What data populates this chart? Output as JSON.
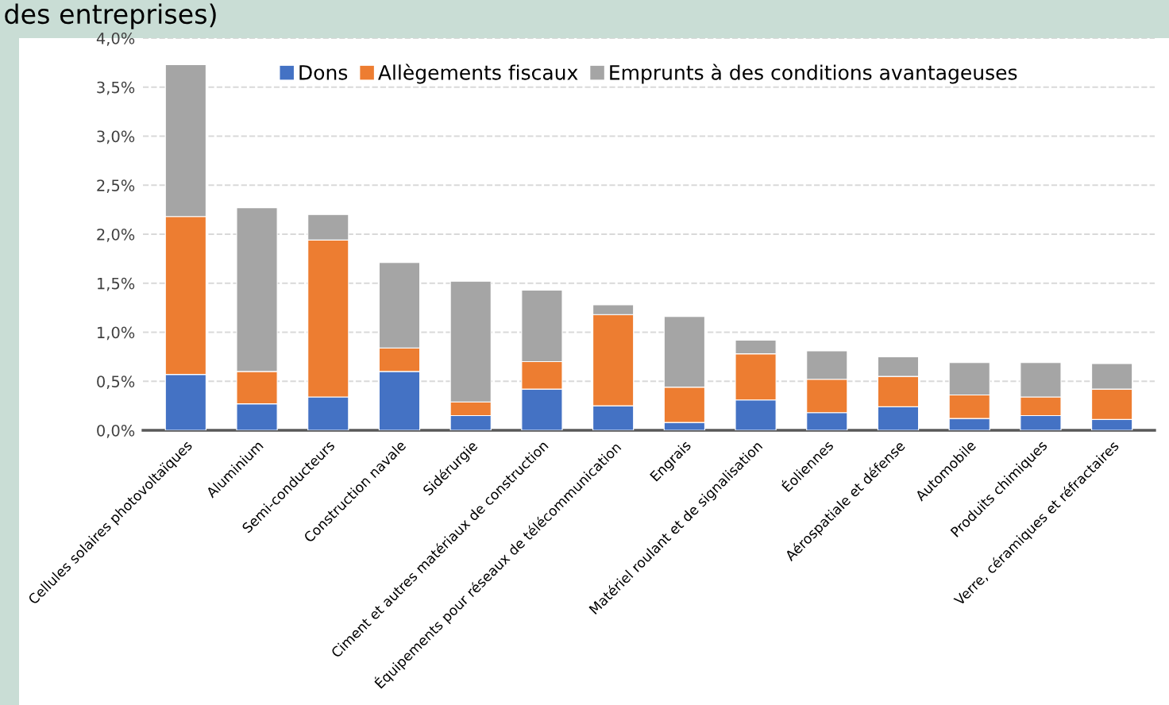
{
  "chart_data": {
    "type": "bar",
    "stacked": true,
    "title": "des entreprises)",
    "categories": [
      "Cellules solaires photovoltaïques",
      "Aluminium",
      "Semi-conducteurs",
      "Construction navale",
      "Sidérurgie",
      "Ciment et autres matériaux de construction",
      "Équipements pour réseaux de télécommunication",
      "Engrais",
      "Matériel roulant et de signalisation",
      "Éoliennes",
      "Aérospatiale et défense",
      "Automobile",
      "Produits chimiques",
      "Verre, céramiques et réfractaires"
    ],
    "series": [
      {
        "name": "Dons",
        "color": "#4472c4",
        "values": [
          0.57,
          0.27,
          0.34,
          0.6,
          0.15,
          0.42,
          0.25,
          0.08,
          0.31,
          0.18,
          0.24,
          0.12,
          0.15,
          0.11
        ]
      },
      {
        "name": "Allègements fiscaux",
        "color": "#ed7d31",
        "values": [
          1.61,
          0.33,
          1.6,
          0.24,
          0.14,
          0.28,
          0.93,
          0.36,
          0.47,
          0.34,
          0.31,
          0.24,
          0.19,
          0.31
        ]
      },
      {
        "name": "Emprunts à des conditions avantageuses",
        "color": "#a5a5a5",
        "values": [
          1.55,
          1.67,
          0.26,
          0.87,
          1.23,
          0.73,
          0.1,
          0.72,
          0.14,
          0.29,
          0.2,
          0.33,
          0.35,
          0.26
        ]
      }
    ],
    "ylim": [
      0,
      4.0
    ],
    "yticks": [
      {
        "value": 0,
        "label": "0,0%"
      },
      {
        "value": 0.5,
        "label": "0,5%"
      },
      {
        "value": 1.0,
        "label": "1,0%"
      },
      {
        "value": 1.5,
        "label": "1,5%"
      },
      {
        "value": 2.0,
        "label": "2,0%"
      },
      {
        "value": 2.5,
        "label": "2,5%"
      },
      {
        "value": 3.0,
        "label": "3,0%"
      },
      {
        "value": 3.5,
        "label": "3,5%"
      },
      {
        "value": 4.0,
        "label": "4,0%"
      }
    ],
    "grid": "y",
    "legend": "top"
  }
}
